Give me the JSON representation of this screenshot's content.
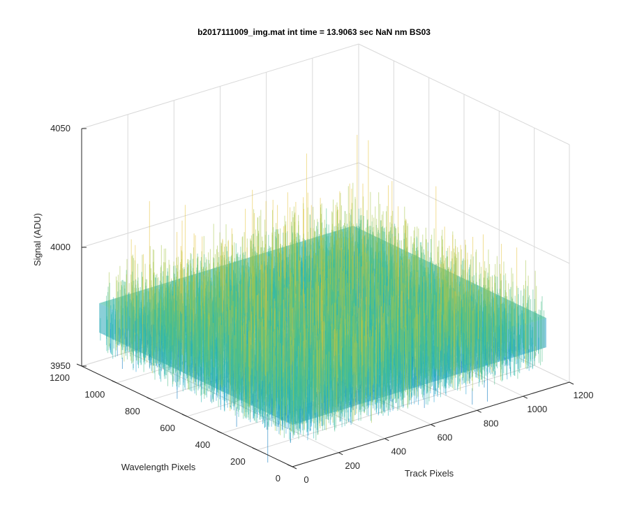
{
  "chart_data": {
    "type": "surface",
    "title": "b2017111009_img.mat int time = 13.9063 sec  NaN nm BS03",
    "xlabel": "Track Pixels",
    "ylabel": "Wavelength Pixels",
    "zlabel": "Signal (ADU)",
    "xlim": [
      0,
      1200
    ],
    "ylim": [
      0,
      1200
    ],
    "zlim": [
      3950,
      4050
    ],
    "x_ticks": [
      "0",
      "200",
      "400",
      "600",
      "800",
      "1000",
      "1200"
    ],
    "y_ticks": [
      "0",
      "200",
      "400",
      "600",
      "800",
      "1000",
      "1200"
    ],
    "z_ticks": [
      "3950",
      "4000",
      "4050"
    ],
    "data_extent": {
      "x": [
        0,
        1100
      ],
      "y": [
        0,
        1100
      ]
    },
    "signal_mean": 3980,
    "signal_noise_range": [
      3960,
      4020
    ],
    "colormap": [
      "#0072bd",
      "#1f9fd6",
      "#2ab7b0",
      "#4dbf8a",
      "#a8c64a",
      "#e6c23a"
    ],
    "grid": true
  }
}
